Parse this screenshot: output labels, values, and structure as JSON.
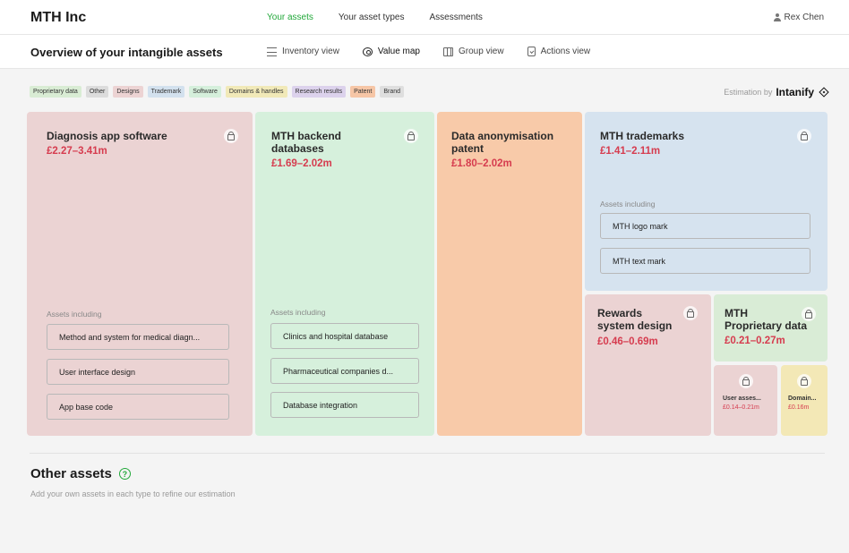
{
  "app": {
    "brand": "MTH Inc",
    "user": "Rex Chen"
  },
  "topnav": [
    {
      "label": "Your assets",
      "active": true
    },
    {
      "label": "Your asset types",
      "active": false
    },
    {
      "label": "Assessments",
      "active": false
    }
  ],
  "page": {
    "title": "Overview of your intangible assets"
  },
  "views": [
    {
      "label": "Inventory view",
      "icon": "list-icon"
    },
    {
      "label": "Value map",
      "icon": "target-icon",
      "active": true
    },
    {
      "label": "Group view",
      "icon": "columns-icon"
    },
    {
      "label": "Actions view",
      "icon": "clipboard-icon"
    }
  ],
  "chips": [
    {
      "label": "Proprietary data",
      "color": "#d9ecd4"
    },
    {
      "label": "Other",
      "color": "#dcdcdc"
    },
    {
      "label": "Designs",
      "color": "#ecd3d3"
    },
    {
      "label": "Trademark",
      "color": "#d3e1ee"
    },
    {
      "label": "Software",
      "color": "#d5efdb"
    },
    {
      "label": "Domains & handles",
      "color": "#f1e9b8"
    },
    {
      "label": "Research results",
      "color": "#dcd2ec"
    },
    {
      "label": "Patent",
      "color": "#f6c6a6"
    },
    {
      "label": "Brand",
      "color": "#dedede"
    }
  ],
  "estimation": {
    "prefix": "Estimation by",
    "name": "Intanify"
  },
  "tiles": {
    "diagnosis": {
      "name": "Diagnosis app software",
      "value": "£2.27–3.41m",
      "includes_label": "Assets including",
      "assets": [
        "Method and system for medical diagn...",
        "User interface design",
        "App base code"
      ],
      "color": "#ebd3d3"
    },
    "backend": {
      "name_line1": "MTH backend",
      "name_line2": "databases",
      "value": "£1.69–2.02m",
      "includes_label": "Assets including",
      "assets": [
        "Clinics and hospital database",
        "Pharmaceutical companies d...",
        "Database integration"
      ],
      "color": "#d6f0dc"
    },
    "patent": {
      "name_line1": "Data anonymisation",
      "name_line2": "patent",
      "value": "£1.80–2.02m",
      "color": "#f8caa9"
    },
    "trademarks": {
      "name": "MTH trademarks",
      "value": "£1.41–2.11m",
      "includes_label": "Assets including",
      "assets": [
        "MTH logo mark",
        "MTH text mark"
      ],
      "color": "#d6e3ef"
    },
    "rewards": {
      "name_line1": "Rewards",
      "name_line2": "system design",
      "value": "£0.46–0.69m",
      "color": "#ebd3d3"
    },
    "proprietary": {
      "name_line1": "MTH",
      "name_line2": "Proprietary data",
      "value": "£0.21–0.27m",
      "color": "#d9ecd6"
    },
    "user_assets": {
      "name": "User asses...",
      "value": "£0.14–0.21m",
      "color": "#ebd3d3"
    },
    "domains": {
      "name": "Domain...",
      "value": "£0.16m",
      "color": "#f3e8b6"
    }
  },
  "other": {
    "title": "Other assets",
    "help": "?",
    "subtitle": "Add your own assets in each type to refine our estimation"
  }
}
